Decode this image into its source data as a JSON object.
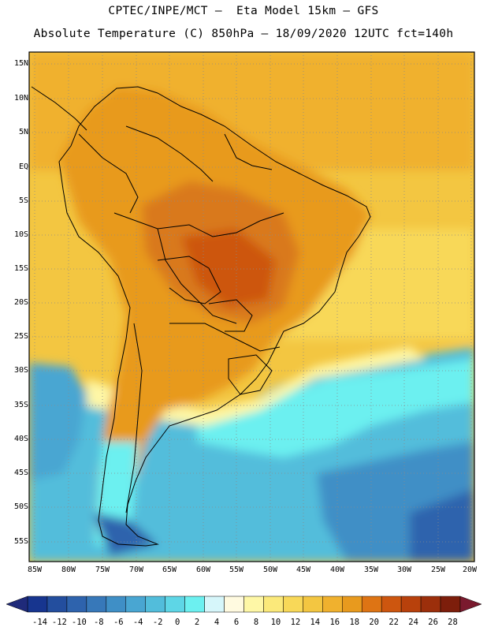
{
  "header": {
    "title_line1": "CPTEC/INPE/MCT –  Eta Model 15km – GFS",
    "title_line2": "Absolute Temperature (C) 850hPa – 18/09/2020 12UTC fct=140h"
  },
  "map": {
    "lat_labels": [
      "15N",
      "10N",
      "5N",
      "EQ",
      "5S",
      "10S",
      "15S",
      "20S",
      "25S",
      "30S",
      "35S",
      "40S",
      "45S",
      "50S",
      "55S"
    ],
    "lon_labels": [
      "85W",
      "80W",
      "75W",
      "70W",
      "65W",
      "60W",
      "55W",
      "50W",
      "45W",
      "40W",
      "35W",
      "30W",
      "25W",
      "20W"
    ],
    "colors": {
      "ocean_cold": "#4cc2e6",
      "ocean_mid": "#2f94cf",
      "ocean_deep": "#2e63ad",
      "cyan": "#68ecf0",
      "light_yellow": "#fdeb85",
      "orange_light": "#f1b731",
      "orange": "#e89a1e",
      "orange_dark": "#d9791a",
      "border": "#000000"
    }
  },
  "legend": {
    "labels": [
      "-14",
      "-12",
      "-10",
      "-8",
      "-6",
      "-4",
      "-2",
      "0",
      "2",
      "4",
      "6",
      "8",
      "10",
      "12",
      "14",
      "16",
      "18",
      "20",
      "22",
      "24",
      "26",
      "28"
    ],
    "colors": [
      "#17358f",
      "#234e9e",
      "#2e63ad",
      "#3778b9",
      "#3f8fc6",
      "#49a6d2",
      "#52bddb",
      "#5ed6e6",
      "#6cf0f0",
      "#d6f6fa",
      "#fffae0",
      "#fef7a6",
      "#fbe97a",
      "#f8d858",
      "#f3c641",
      "#f0b12e",
      "#e89a1e",
      "#de7414",
      "#cd560f",
      "#b8410c",
      "#9c2f0b",
      "#7d1e0b"
    ],
    "left_arrow_color": "#1f2a7a",
    "right_arrow_color": "#7a1a2e"
  }
}
